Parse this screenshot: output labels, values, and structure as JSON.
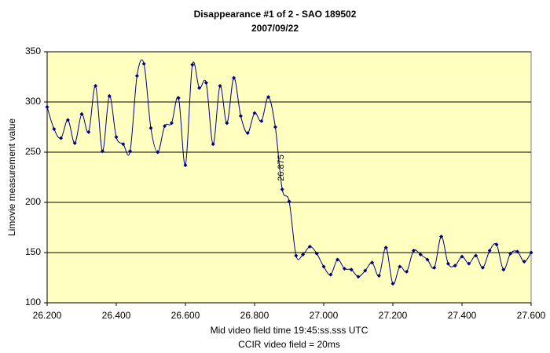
{
  "chart_data": {
    "type": "line",
    "title": "Disappearance #1 of 2 - SAO 189502",
    "subtitle": "2007/09/22",
    "y_label": "Limovie measurement value",
    "x_label": [
      "Mid video field time 19:45:ss.sss UTC",
      "CCIR video field = 20ms"
    ],
    "annotations": [
      {
        "text": "26.875",
        "x": 26.875
      }
    ],
    "x": [
      26.2,
      26.22,
      26.24,
      26.26,
      26.28,
      26.3,
      26.32,
      26.34,
      26.36,
      26.38,
      26.4,
      26.42,
      26.44,
      26.46,
      26.48,
      26.5,
      26.52,
      26.54,
      26.56,
      26.58,
      26.6,
      26.62,
      26.64,
      26.66,
      26.68,
      26.7,
      26.72,
      26.74,
      26.76,
      26.78,
      26.8,
      26.82,
      26.84,
      26.86,
      26.88,
      26.9,
      26.92,
      26.94,
      26.96,
      26.98,
      27.0,
      27.02,
      27.04,
      27.06,
      27.08,
      27.1,
      27.12,
      27.14,
      27.16,
      27.18,
      27.2,
      27.22,
      27.24,
      27.26,
      27.28,
      27.3,
      27.32,
      27.34,
      27.36,
      27.38,
      27.4,
      27.42,
      27.44,
      27.46,
      27.48,
      27.5,
      27.52,
      27.54,
      27.56,
      27.58,
      27.6
    ],
    "series": [
      {
        "color": "#000080",
        "values": [
          295,
          273,
          264,
          282,
          259,
          288,
          270,
          316,
          251,
          306,
          265,
          258,
          251,
          326,
          338,
          274,
          250,
          276,
          279,
          304,
          237,
          337,
          314,
          319,
          258,
          316,
          279,
          324,
          286,
          269,
          289,
          281,
          305,
          275,
          213,
          201,
          147,
          148,
          156,
          149,
          136,
          128,
          143,
          134,
          133,
          126,
          132,
          140,
          127,
          155,
          119,
          136,
          131,
          152,
          148,
          143,
          135,
          166,
          139,
          137,
          146,
          139,
          147,
          135,
          152,
          158,
          133,
          149,
          151,
          141,
          150
        ]
      }
    ],
    "xlim": [
      26.2,
      27.6
    ],
    "xticks": [
      {
        "value": 26.2,
        "label": "26.200"
      },
      {
        "value": 26.4,
        "label": "26.400"
      },
      {
        "value": 26.6,
        "label": "26.600"
      },
      {
        "value": 26.8,
        "label": "26.800"
      },
      {
        "value": 27.0,
        "label": "27.000"
      },
      {
        "value": 27.2,
        "label": "27.200"
      },
      {
        "value": 27.4,
        "label": "27.400"
      },
      {
        "value": 27.6,
        "label": "27.600"
      }
    ],
    "ylim": [
      100,
      350
    ],
    "yticks": [
      100,
      150,
      200,
      250,
      300,
      350
    ],
    "grid": true,
    "plot_background": "#ffffc0"
  }
}
